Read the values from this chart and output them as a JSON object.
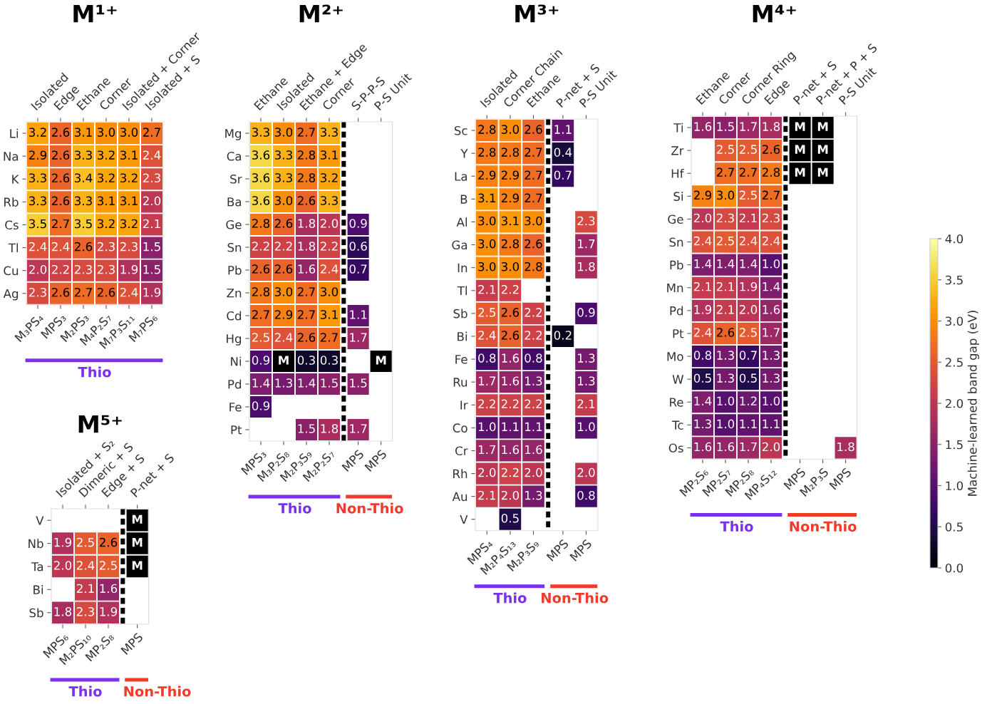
{
  "chart_data": [
    {
      "type": "heatmap",
      "title": "M¹⁺",
      "data_labels": true,
      "categories": [
        "M₃PS₄",
        "MPS₃",
        "M₂PS₃",
        "M₄P₂S₇",
        "M₇P₃S₁₁",
        "M₇PS₆"
      ],
      "annotations": [
        "Isolated",
        "Edge",
        "Ethane",
        "Corner",
        "Isolated + Corner",
        "Isolated + S",
        "Thio"
      ],
      "y_categories": [
        "Li",
        "Na",
        "K",
        "Rb",
        "Cs",
        "Tl",
        "Cu",
        "Ag"
      ],
      "cells": [
        [
          3.2,
          2.6,
          3.1,
          3.0,
          3.0,
          2.7
        ],
        [
          2.9,
          2.6,
          3.3,
          3.2,
          3.1,
          2.4
        ],
        [
          3.3,
          2.6,
          3.4,
          3.2,
          3.2,
          2.3
        ],
        [
          3.3,
          2.6,
          3.3,
          3.1,
          3.1,
          2.0
        ],
        [
          3.5,
          2.7,
          3.5,
          3.2,
          3.2,
          2.1
        ],
        [
          2.4,
          2.4,
          2.6,
          2.3,
          2.3,
          1.5
        ],
        [
          2.0,
          2.2,
          2.3,
          2.3,
          1.9,
          1.5
        ],
        [
          2.3,
          2.6,
          2.7,
          2.6,
          2.4,
          1.9
        ]
      ],
      "cell_labels": [
        [
          "3.2",
          "2.6",
          "3.1",
          "3.0",
          "3.0",
          "2.7"
        ],
        [
          "2.9",
          "2.6",
          "3.3",
          "3.2",
          "3.1",
          "2.4"
        ],
        [
          "3.3",
          "2.6",
          "3.4",
          "3.2",
          "3.2",
          "2.3"
        ],
        [
          "3.3",
          "2.6",
          "3.3",
          "3.1",
          "3.1",
          "2.0"
        ],
        [
          "3.5",
          "2.7",
          "3.5",
          "3.2",
          "3.2",
          "2.1"
        ],
        [
          "2.4",
          "2.4",
          "2.6",
          "2.3",
          "2.3",
          "1.5"
        ],
        [
          "2.0",
          "2.2",
          "2.3",
          "2.3",
          "1.9",
          "1.5"
        ],
        [
          "2.3",
          "2.6",
          "2.7",
          "2.6",
          "2.4",
          "1.9"
        ]
      ]
    },
    {
      "type": "heatmap",
      "title": "M²⁺",
      "data_labels": true,
      "categories": [
        "MPS₃",
        "M₃P₂S₈",
        "M₂P₃S₉",
        "M₂P₂S₇",
        "MPS",
        "MPS"
      ],
      "annotations": [
        "Ethane",
        "Isolated",
        "Ethane + Edge",
        "Corner",
        "S-P-P-S",
        "P-S Unit",
        "Thio",
        "Non-Thio"
      ],
      "y_categories": [
        "Mg",
        "Ca",
        "Sr",
        "Ba",
        "Ge",
        "Sn",
        "Pb",
        "Zn",
        "Cd",
        "Hg",
        "Ni",
        "Pd",
        "Fe",
        "Pt"
      ],
      "cells": [
        [
          3.3,
          3.0,
          2.7,
          3.3,
          null,
          null
        ],
        [
          3.6,
          3.3,
          2.8,
          3.1,
          null,
          null
        ],
        [
          3.6,
          3.3,
          2.8,
          3.2,
          null,
          null
        ],
        [
          3.6,
          3.0,
          2.6,
          3.3,
          null,
          null
        ],
        [
          2.8,
          2.6,
          1.8,
          2.0,
          0.9,
          null
        ],
        [
          2.2,
          2.2,
          1.8,
          2.2,
          0.6,
          null
        ],
        [
          2.6,
          2.6,
          1.6,
          2.4,
          0.7,
          null
        ],
        [
          2.8,
          3.0,
          2.7,
          3.0,
          null,
          null
        ],
        [
          2.7,
          2.9,
          2.7,
          3.1,
          1.1,
          null
        ],
        [
          2.5,
          2.4,
          2.6,
          2.7,
          1.7,
          null
        ],
        [
          0.9,
          null,
          0.3,
          0.3,
          null,
          null
        ],
        [
          1.4,
          1.3,
          1.4,
          1.5,
          1.5,
          null
        ],
        [
          0.9,
          null,
          null,
          null,
          null,
          null
        ],
        [
          null,
          null,
          1.5,
          1.8,
          1.7,
          null
        ]
      ],
      "cell_labels": [
        [
          "3.3",
          "3.0",
          "2.7",
          "3.3",
          null,
          null
        ],
        [
          "3.6",
          "3.3",
          "2.8",
          "3.1",
          null,
          null
        ],
        [
          "3.6",
          "3.3",
          "2.8",
          "3.2",
          null,
          null
        ],
        [
          "3.6",
          "3.0",
          "2.6",
          "3.3",
          null,
          null
        ],
        [
          "2.8",
          "2.6",
          "1.8",
          "2.0",
          "0.9",
          null
        ],
        [
          "2.2",
          "2.2",
          "1.8",
          "2.2",
          "0.6",
          null
        ],
        [
          "2.6",
          "2.6",
          "1.6",
          "2.4",
          "0.7",
          null
        ],
        [
          "2.8",
          "3.0",
          "2.7",
          "3.0",
          null,
          null
        ],
        [
          "2.7",
          "2.9",
          "2.7",
          "3.1",
          "1.1",
          null
        ],
        [
          "2.5",
          "2.4",
          "2.6",
          "2.7",
          "1.7",
          null
        ],
        [
          "0.9",
          "M",
          "0.3",
          "0.3",
          null,
          "M"
        ],
        [
          "1.4",
          "1.3",
          "1.4",
          "1.5",
          "1.5",
          null
        ],
        [
          "0.9",
          null,
          null,
          null,
          null,
          null
        ],
        [
          null,
          null,
          "1.5",
          "1.8",
          "1.7",
          null
        ]
      ]
    },
    {
      "type": "heatmap",
      "title": "M³⁺",
      "data_labels": true,
      "categories": [
        "MPS₄",
        "M₂P₄S₁₃",
        "M₂P₃S₉",
        "MPS",
        "MPS"
      ],
      "annotations": [
        "Isolated",
        "Corner Chain",
        "Ethane",
        "P-net + S",
        "P-S Unit",
        "Thio",
        "Non-Thio"
      ],
      "y_categories": [
        "Sc",
        "Y",
        "La",
        "B",
        "Al",
        "Ga",
        "In",
        "Tl",
        "Sb",
        "Bi",
        "Fe",
        "Ru",
        "Ir",
        "Co",
        "Cr",
        "Rh",
        "Au",
        "V"
      ],
      "cells": [
        [
          2.8,
          3.0,
          2.6,
          1.1,
          null
        ],
        [
          2.8,
          2.8,
          2.7,
          0.4,
          null
        ],
        [
          2.9,
          2.9,
          2.7,
          0.7,
          null
        ],
        [
          3.1,
          2.9,
          2.7,
          null,
          null
        ],
        [
          3.0,
          3.1,
          3.0,
          null,
          2.3
        ],
        [
          3.0,
          2.8,
          2.6,
          null,
          1.7
        ],
        [
          3.0,
          3.0,
          2.8,
          null,
          1.8
        ],
        [
          2.1,
          2.2,
          null,
          null,
          null
        ],
        [
          2.5,
          2.6,
          2.2,
          null,
          0.9
        ],
        [
          2.4,
          2.6,
          2.2,
          0.2,
          null
        ],
        [
          0.8,
          1.6,
          0.8,
          null,
          1.3
        ],
        [
          1.7,
          1.6,
          1.3,
          null,
          1.3
        ],
        [
          2.2,
          2.2,
          2.2,
          null,
          2.1
        ],
        [
          1.0,
          1.1,
          1.1,
          null,
          1.0
        ],
        [
          1.7,
          1.6,
          1.6,
          null,
          null
        ],
        [
          2.0,
          2.2,
          2.0,
          null,
          2.0
        ],
        [
          2.1,
          2.0,
          1.3,
          null,
          0.8
        ],
        [
          null,
          0.5,
          null,
          null,
          null
        ]
      ],
      "cell_labels": [
        [
          "2.8",
          "3.0",
          "2.6",
          "1.1",
          null
        ],
        [
          "2.8",
          "2.8",
          "2.7",
          "0.4",
          null
        ],
        [
          "2.9",
          "2.9",
          "2.7",
          "0.7",
          null
        ],
        [
          "3.1",
          "2.9",
          "2.7",
          null,
          null
        ],
        [
          "3.0",
          "3.1",
          "3.0",
          null,
          "2.3"
        ],
        [
          "3.0",
          "2.8",
          "2.6",
          null,
          "1.7"
        ],
        [
          "3.0",
          "3.0",
          "2.8",
          null,
          "1.8"
        ],
        [
          "2.1",
          "2.2",
          null,
          null,
          null
        ],
        [
          "2.5",
          "2.6",
          "2.2",
          null,
          "0.9"
        ],
        [
          "2.4",
          "2.6",
          "2.2",
          "0.2",
          null
        ],
        [
          "0.8",
          "1.6",
          "0.8",
          null,
          "1.3"
        ],
        [
          "1.7",
          "1.6",
          "1.3",
          null,
          "1.3"
        ],
        [
          "2.2",
          "2.2",
          "2.2",
          null,
          "2.1"
        ],
        [
          "1.0",
          "1.1",
          "1.1",
          null,
          "1.0"
        ],
        [
          "1.7",
          "1.6",
          "1.6",
          null,
          null
        ],
        [
          "2.0",
          "2.2",
          "2.0",
          null,
          "2.0"
        ],
        [
          "2.1",
          "2.0",
          "1.3",
          null,
          "0.8"
        ],
        [
          null,
          "0.5",
          null,
          null,
          null
        ]
      ]
    },
    {
      "type": "heatmap",
      "title": "M⁴⁺",
      "data_labels": true,
      "categories": [
        "MP₂S₆",
        "MP₂S₇",
        "MP₂S₈",
        "MP₄S₁₂",
        "MPS",
        "M₂P₃S",
        "MPS"
      ],
      "annotations": [
        "Ethane",
        "Corner",
        "Corner Ring",
        "Edge",
        "P-net + S",
        "P-net + P + S",
        "P-S Unit",
        "Thio",
        "Non-Thio"
      ],
      "y_categories": [
        "Ti",
        "Zr",
        "Hf",
        "Si",
        "Ge",
        "Sn",
        "Pb",
        "Mn",
        "Pd",
        "Pt",
        "Mo",
        "W",
        "Re",
        "Tc",
        "Os"
      ],
      "cells": [
        [
          1.6,
          1.5,
          1.7,
          1.8,
          null,
          null,
          null
        ],
        [
          null,
          2.5,
          2.5,
          2.6,
          null,
          null,
          null
        ],
        [
          null,
          2.7,
          2.7,
          2.8,
          null,
          null,
          null
        ],
        [
          2.9,
          3.0,
          2.5,
          2.7,
          null,
          null,
          null
        ],
        [
          2.0,
          2.3,
          2.1,
          2.3,
          null,
          null,
          null
        ],
        [
          2.4,
          2.5,
          2.4,
          2.4,
          null,
          null,
          null
        ],
        [
          1.4,
          1.4,
          1.4,
          1.0,
          null,
          null,
          null
        ],
        [
          2.1,
          2.1,
          1.9,
          1.4,
          null,
          null,
          null
        ],
        [
          1.9,
          2.1,
          2.0,
          1.6,
          null,
          null,
          null
        ],
        [
          2.4,
          2.6,
          2.5,
          1.7,
          null,
          null,
          null
        ],
        [
          0.8,
          1.3,
          0.7,
          1.3,
          null,
          null,
          null
        ],
        [
          0.5,
          1.3,
          0.5,
          1.3,
          null,
          null,
          null
        ],
        [
          1.4,
          1.0,
          1.2,
          1.0,
          null,
          null,
          null
        ],
        [
          1.3,
          1.0,
          1.1,
          1.1,
          null,
          null,
          null
        ],
        [
          1.6,
          1.6,
          1.7,
          2.0,
          null,
          null,
          1.8
        ]
      ],
      "cell_labels": [
        [
          "1.6",
          "1.5",
          "1.7",
          "1.8",
          "M",
          "M",
          null
        ],
        [
          null,
          "2.5",
          "2.5",
          "2.6",
          "M",
          "M",
          null
        ],
        [
          null,
          "2.7",
          "2.7",
          "2.8",
          "M",
          "M",
          null
        ],
        [
          "2.9",
          "3.0",
          "2.5",
          "2.7",
          null,
          null,
          null
        ],
        [
          "2.0",
          "2.3",
          "2.1",
          "2.3",
          null,
          null,
          null
        ],
        [
          "2.4",
          "2.5",
          "2.4",
          "2.4",
          null,
          null,
          null
        ],
        [
          "1.4",
          "1.4",
          "1.4",
          "1.0",
          null,
          null,
          null
        ],
        [
          "2.1",
          "2.1",
          "1.9",
          "1.4",
          null,
          null,
          null
        ],
        [
          "1.9",
          "2.1",
          "2.0",
          "1.6",
          null,
          null,
          null
        ],
        [
          "2.4",
          "2.6",
          "2.5",
          "1.7",
          null,
          null,
          null
        ],
        [
          "0.8",
          "1.3",
          "0.7",
          "1.3",
          null,
          null,
          null
        ],
        [
          "0.5",
          "1.3",
          "0.5",
          "1.3",
          null,
          null,
          null
        ],
        [
          "1.4",
          "1.0",
          "1.2",
          "1.0",
          null,
          null,
          null
        ],
        [
          "1.3",
          "1.0",
          "1.1",
          "1.1",
          null,
          null,
          null
        ],
        [
          "1.6",
          "1.6",
          "1.7",
          "2.0",
          null,
          null,
          "1.8"
        ]
      ],
      "clim": [
        0,
        4
      ],
      "cticks": [
        {
          "value": 0,
          "label": "0.0"
        },
        0.5,
        {
          "value": 1,
          "label": "1.0"
        },
        1.5,
        {
          "value": 2,
          "label": "2.0"
        },
        2.5,
        {
          "value": 3,
          "label": "3.0"
        },
        3.5,
        {
          "value": 4,
          "label": "4.0"
        }
      ],
      "clabel": "Machine-learned band gap (eV)"
    },
    {
      "type": "heatmap",
      "title": "M⁵⁺",
      "data_labels": true,
      "categories": [
        "MPS₆",
        "M₂PS₁₀",
        "MP₂S₈",
        "MPS"
      ],
      "annotations": [
        "Isolated + S₂",
        "Dimeric + S",
        "Edge + S",
        "P-net + S",
        "Thio",
        "Non-Thio"
      ],
      "y_categories": [
        "V",
        "Nb",
        "Ta",
        "Bi",
        "Sb"
      ],
      "cells": [
        [
          null,
          null,
          null,
          null
        ],
        [
          1.9,
          2.5,
          2.6,
          null
        ],
        [
          2.0,
          2.4,
          2.5,
          null
        ],
        [
          null,
          2.1,
          1.6,
          null
        ],
        [
          1.8,
          2.3,
          1.9,
          null
        ]
      ],
      "cell_labels": [
        [
          null,
          null,
          null,
          "M"
        ],
        [
          "1.9",
          "2.5",
          "2.6",
          "M"
        ],
        [
          "2.0",
          "2.4",
          "2.5",
          "M"
        ],
        [
          null,
          "2.1",
          "1.6",
          null
        ],
        [
          "1.8",
          "2.3",
          "1.9",
          null
        ]
      ]
    }
  ]
}
